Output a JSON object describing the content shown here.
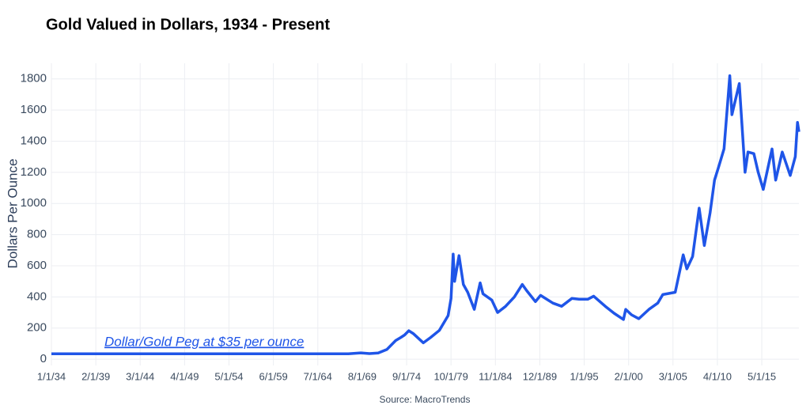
{
  "chart_data": {
    "type": "line",
    "title": "Gold Valued in Dollars, 1934 - Present",
    "y_label": "Dollars Per Ounce",
    "annotation": "Dollar/Gold Peg at $35 per ounce",
    "source": "Source: MacroTrends",
    "grid": true,
    "xlim": [
      "1934-01-01",
      "2019-08-01"
    ],
    "ylim": [
      -40,
      1900
    ],
    "yticks": [
      0,
      200,
      400,
      600,
      800,
      1000,
      1200,
      1400,
      1600,
      1800
    ],
    "xticks": [
      {
        "value": "1934-01-01",
        "label": "1/1/34"
      },
      {
        "value": "1939-02-01",
        "label": "2/1/39"
      },
      {
        "value": "1944-03-01",
        "label": "3/1/44"
      },
      {
        "value": "1949-04-01",
        "label": "4/1/49"
      },
      {
        "value": "1954-05-01",
        "label": "5/1/54"
      },
      {
        "value": "1959-06-01",
        "label": "6/1/59"
      },
      {
        "value": "1964-07-01",
        "label": "7/1/64"
      },
      {
        "value": "1969-08-01",
        "label": "8/1/69"
      },
      {
        "value": "1974-09-01",
        "label": "9/1/74"
      },
      {
        "value": "1979-10-01",
        "label": "10/1/79"
      },
      {
        "value": "1984-11-01",
        "label": "11/1/84"
      },
      {
        "value": "1989-12-01",
        "label": "12/1/89"
      },
      {
        "value": "1995-01-01",
        "label": "1/1/95"
      },
      {
        "value": "2000-02-01",
        "label": "2/1/00"
      },
      {
        "value": "2005-03-01",
        "label": "3/1/05"
      },
      {
        "value": "2010-04-01",
        "label": "4/1/10"
      },
      {
        "value": "2015-05-01",
        "label": "5/1/15"
      }
    ],
    "x": [
      "1934-01",
      "1968-01",
      "1969-06",
      "1970-06",
      "1971-06",
      "1972-06",
      "1973-06",
      "1974-01",
      "1974-06",
      "1974-12",
      "1975-06",
      "1976-08",
      "1977-06",
      "1978-06",
      "1979-06",
      "1979-10",
      "1980-01",
      "1980-03",
      "1980-09",
      "1981-03",
      "1981-09",
      "1982-06",
      "1983-02",
      "1983-06",
      "1984-06",
      "1985-02",
      "1986-01",
      "1987-01",
      "1987-12",
      "1988-06",
      "1989-06",
      "1990-01",
      "1991-06",
      "1992-06",
      "1993-08",
      "1994-06",
      "1995-06",
      "1996-02",
      "1997-06",
      "1998-06",
      "1999-07",
      "1999-10",
      "2000-06",
      "2001-04",
      "2002-06",
      "2003-06",
      "2004-01",
      "2005-06",
      "2006-05",
      "2006-10",
      "2007-06",
      "2008-03",
      "2008-10",
      "2009-06",
      "2009-12",
      "2010-06",
      "2011-01",
      "2011-09",
      "2011-12",
      "2012-10",
      "2013-06",
      "2013-10",
      "2014-06",
      "2014-12",
      "2015-07",
      "2016-07",
      "2016-12",
      "2017-09",
      "2018-08",
      "2019-03",
      "2019-06",
      "2019-08"
    ],
    "series": [
      {
        "name": "Gold",
        "color": "#1f55e8",
        "values": [
          35,
          35,
          41,
          36,
          40,
          63,
          120,
          140,
          155,
          183,
          165,
          105,
          140,
          185,
          280,
          390,
          675,
          500,
          665,
          480,
          430,
          320,
          490,
          420,
          380,
          300,
          340,
          400,
          480,
          440,
          370,
          410,
          360,
          340,
          390,
          385,
          385,
          405,
          340,
          295,
          255,
          320,
          285,
          260,
          320,
          360,
          415,
          430,
          670,
          580,
          660,
          970,
          730,
          940,
          1150,
          1240,
          1350,
          1820,
          1570,
          1770,
          1200,
          1330,
          1320,
          1200,
          1090,
          1350,
          1150,
          1330,
          1180,
          1300,
          1520,
          1460
        ]
      }
    ]
  }
}
